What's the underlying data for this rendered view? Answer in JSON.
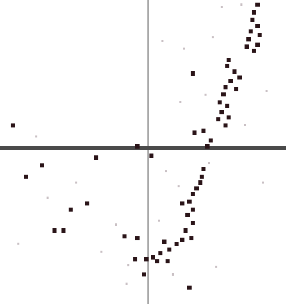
{
  "chart_data": {
    "type": "scatter",
    "xlim": [
      -4.0,
      3.8
    ],
    "ylim": [
      -4.0,
      3.8
    ],
    "grid": false,
    "colors": {
      "background": "#ffffff",
      "point": "#2a1418",
      "point_faint": "#c9c0c4",
      "x_axis": "#4a4a4a",
      "y_axis": "#a8a8a8"
    },
    "series": [
      {
        "values": [
          {
            "x": 3.05,
            "y": 3.75
          },
          {
            "x": 2.95,
            "y": 3.55
          },
          {
            "x": 2.9,
            "y": 3.35
          },
          {
            "x": 3.05,
            "y": 3.2
          },
          {
            "x": 2.85,
            "y": 3.05
          },
          {
            "x": 3.1,
            "y": 2.95
          },
          {
            "x": 2.8,
            "y": 2.85
          },
          {
            "x": 3.05,
            "y": 2.7
          },
          {
            "x": 2.75,
            "y": 2.65
          },
          {
            "x": 2.95,
            "y": 2.55
          },
          {
            "x": 2.25,
            "y": 2.3
          },
          {
            "x": 2.2,
            "y": 2.15
          },
          {
            "x": 2.4,
            "y": 2.0
          },
          {
            "x": 2.55,
            "y": 1.85
          },
          {
            "x": 2.3,
            "y": 1.75
          },
          {
            "x": 2.15,
            "y": 1.6
          },
          {
            "x": 2.45,
            "y": 1.55
          },
          {
            "x": 2.1,
            "y": 1.4
          },
          {
            "x": 1.25,
            "y": 1.95
          },
          {
            "x": 2.0,
            "y": 1.2
          },
          {
            "x": 2.2,
            "y": 1.1
          },
          {
            "x": 2.05,
            "y": 0.95
          },
          {
            "x": 2.25,
            "y": 0.8
          },
          {
            "x": 1.95,
            "y": 0.75
          },
          {
            "x": 2.15,
            "y": 0.6
          },
          {
            "x": 1.3,
            "y": 0.4
          },
          {
            "x": 1.55,
            "y": 0.45
          },
          {
            "x": 1.75,
            "y": 0.2
          },
          {
            "x": 1.65,
            "y": 0.05
          },
          {
            "x": -0.3,
            "y": 0.05
          },
          {
            "x": 0.1,
            "y": -0.2
          },
          {
            "x": 1.55,
            "y": -0.55
          },
          {
            "x": 1.5,
            "y": -0.75
          },
          {
            "x": 1.45,
            "y": -0.9
          },
          {
            "x": 1.35,
            "y": -1.05
          },
          {
            "x": 1.25,
            "y": -1.2
          },
          {
            "x": 1.15,
            "y": -1.4
          },
          {
            "x": 0.95,
            "y": -1.45
          },
          {
            "x": 1.25,
            "y": -1.6
          },
          {
            "x": 1.1,
            "y": -1.75
          },
          {
            "x": 1.25,
            "y": -1.95
          },
          {
            "x": 1.05,
            "y": -2.15
          },
          {
            "x": 1.2,
            "y": -2.35
          },
          {
            "x": 0.95,
            "y": -2.4
          },
          {
            "x": 0.8,
            "y": -2.5
          },
          {
            "x": 0.6,
            "y": -2.65
          },
          {
            "x": 0.35,
            "y": -2.75
          },
          {
            "x": 0.15,
            "y": -2.85
          },
          {
            "x": -0.05,
            "y": -2.9
          },
          {
            "x": -0.35,
            "y": -2.9
          },
          {
            "x": 0.25,
            "y": -2.95
          },
          {
            "x": 0.55,
            "y": -2.95
          },
          {
            "x": -0.3,
            "y": -2.35
          },
          {
            "x": 0.45,
            "y": -2.45
          },
          {
            "x": -0.1,
            "y": -3.3
          },
          {
            "x": 1.15,
            "y": -3.65
          },
          {
            "x": -3.75,
            "y": 0.6
          },
          {
            "x": -2.95,
            "y": -0.45
          },
          {
            "x": -1.45,
            "y": -0.25
          },
          {
            "x": -3.4,
            "y": -0.75
          },
          {
            "x": -2.15,
            "y": -1.6
          },
          {
            "x": -1.7,
            "y": -1.45
          },
          {
            "x": -2.6,
            "y": -2.15
          },
          {
            "x": -2.35,
            "y": -2.15
          },
          {
            "x": -0.65,
            "y": -2.3
          }
        ]
      }
    ],
    "faint_points": [
      {
        "x": 2.05,
        "y": 3.7
      },
      {
        "x": 2.6,
        "y": 3.75
      },
      {
        "x": 1.0,
        "y": 2.6
      },
      {
        "x": 0.4,
        "y": 2.8
      },
      {
        "x": 1.6,
        "y": 1.4
      },
      {
        "x": 1.8,
        "y": 2.9
      },
      {
        "x": 0.9,
        "y": 1.2
      },
      {
        "x": 2.7,
        "y": 0.6
      },
      {
        "x": 0.5,
        "y": -0.6
      },
      {
        "x": 0.85,
        "y": -1.0
      },
      {
        "x": 0.3,
        "y": -1.9
      },
      {
        "x": 1.7,
        "y": -0.4
      },
      {
        "x": -0.9,
        "y": -2.0
      },
      {
        "x": -1.3,
        "y": -2.7
      },
      {
        "x": -2.8,
        "y": -1.3
      },
      {
        "x": -0.55,
        "y": -3.05
      },
      {
        "x": 0.7,
        "y": -3.3
      },
      {
        "x": -0.6,
        "y": -3.55
      },
      {
        "x": -3.1,
        "y": 0.3
      },
      {
        "x": -2.0,
        "y": -0.9
      },
      {
        "x": 3.3,
        "y": 1.5
      },
      {
        "x": 3.2,
        "y": -0.9
      },
      {
        "x": -3.6,
        "y": -2.5
      },
      {
        "x": 1.9,
        "y": -3.1
      }
    ]
  }
}
